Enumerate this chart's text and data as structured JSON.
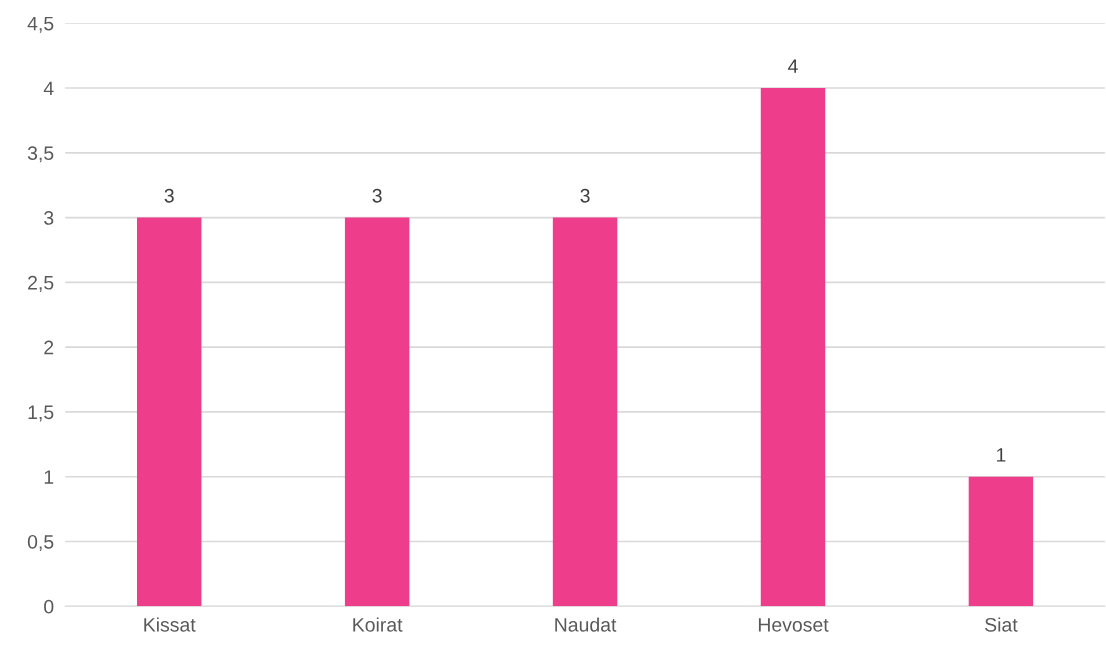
{
  "chart_data": {
    "type": "bar",
    "categories": [
      "Kissat",
      "Koirat",
      "Naudat",
      "Hevoset",
      "Siat"
    ],
    "values": [
      3,
      3,
      3,
      4,
      1
    ],
    "color": "#ee3d8a",
    "ylim": [
      0,
      4.5
    ],
    "yticks": [
      0,
      {
        "value": 0.5,
        "label": "0,5"
      },
      1,
      {
        "value": 1.5,
        "label": "1,5"
      },
      2,
      {
        "value": 2.5,
        "label": "2,5"
      },
      3,
      {
        "value": 3.5,
        "label": "3,5"
      },
      4,
      {
        "value": 4.5,
        "label": "4,5"
      }
    ],
    "grid": "y",
    "data_labels": true
  }
}
